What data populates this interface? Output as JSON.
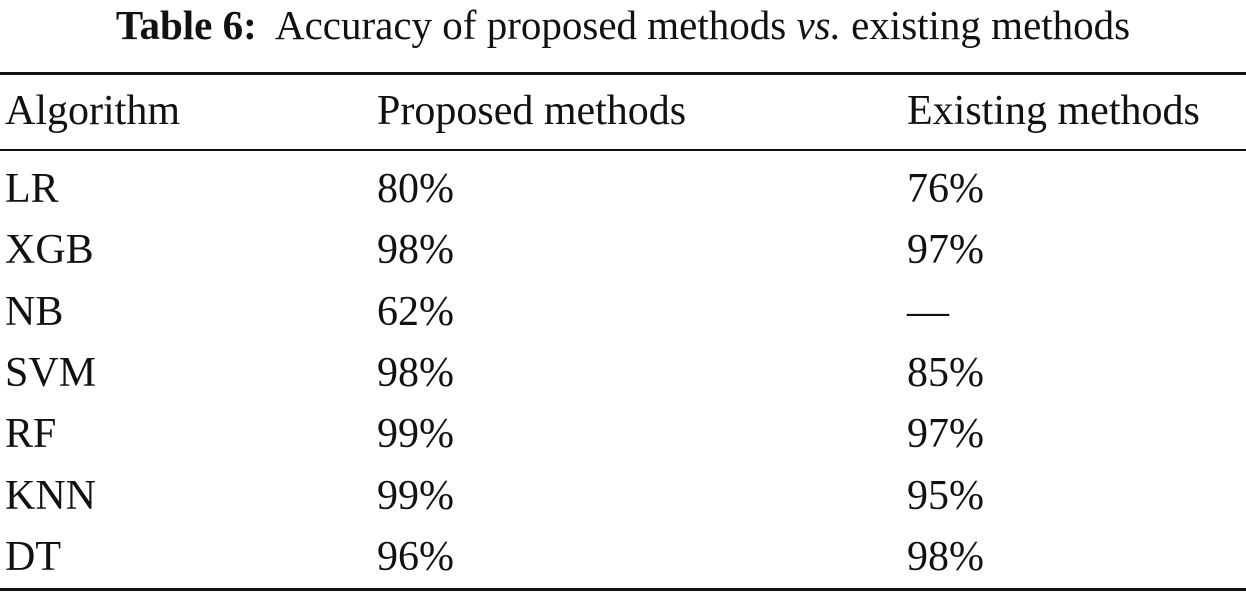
{
  "caption": {
    "label": "Table 6:",
    "before": "Accuracy of proposed methods",
    "emphasis": "vs.",
    "after": "existing methods"
  },
  "table": {
    "header": [
      "Algorithm",
      "Proposed methods",
      "Existing methods"
    ],
    "rows": [
      [
        "LR",
        "80%",
        "76%"
      ],
      [
        "XGB",
        "98%",
        "97%"
      ],
      [
        "NB",
        "62%",
        "—"
      ],
      [
        "SVM",
        "98%",
        "85%"
      ],
      [
        "RF",
        "99%",
        "97%"
      ],
      [
        "KNN",
        "99%",
        "95%"
      ],
      [
        "DT",
        "96%",
        "98%"
      ]
    ]
  }
}
